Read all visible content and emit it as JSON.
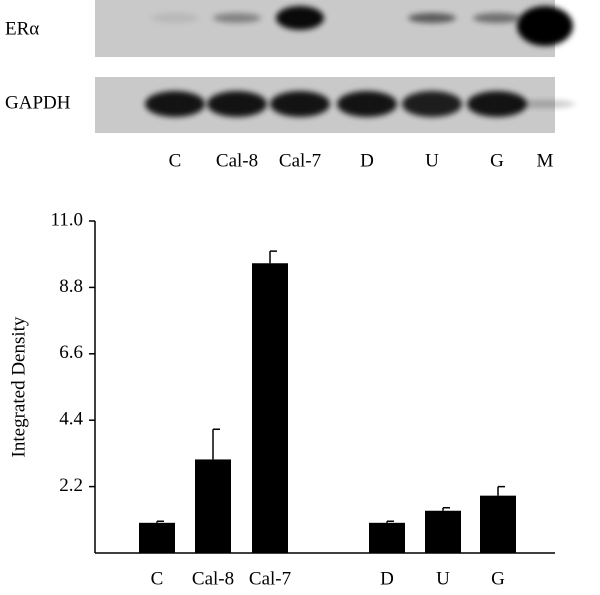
{
  "blot": {
    "rows": [
      "ERα",
      "GAPDH"
    ],
    "lanes": [
      "C",
      "Cal-8",
      "Cal-7",
      "D",
      "U",
      "G",
      "M"
    ]
  },
  "chart_data": {
    "type": "bar",
    "y_label": "Integrated Density",
    "categories": [
      "C",
      "Cal-8",
      "Cal-7",
      "D",
      "U",
      "G"
    ],
    "values": [
      1.0,
      3.1,
      9.6,
      1.0,
      1.4,
      1.9
    ],
    "errors": [
      0.05,
      1.0,
      0.4,
      0.05,
      0.1,
      0.3
    ],
    "color": "#000000",
    "ylim": [
      0,
      11
    ],
    "yticks": [
      2.2,
      4.4,
      6.6,
      8.8,
      {
        "value": 11,
        "label": "11.0"
      }
    ]
  }
}
